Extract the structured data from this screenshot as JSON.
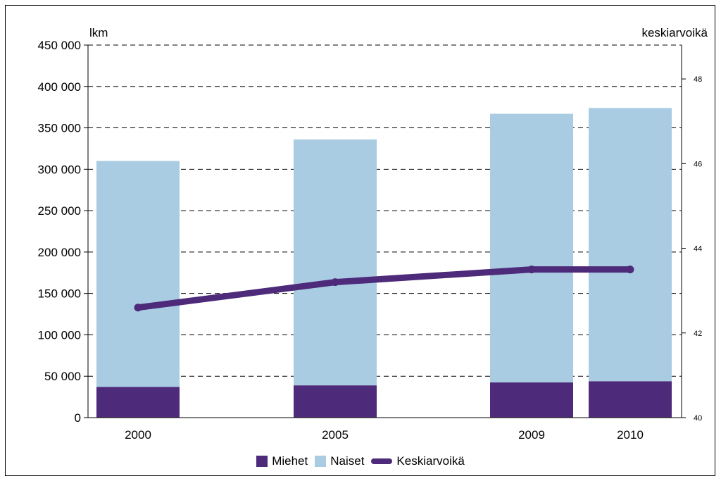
{
  "chart_data": {
    "type": "bar",
    "stacked": true,
    "categories": [
      "2000",
      "2005",
      "2009",
      "2010"
    ],
    "series": [
      {
        "name": "Miehet",
        "type": "bar",
        "axis": "left",
        "color": "#4e2a7a",
        "values": [
          37000,
          39000,
          42500,
          44000
        ]
      },
      {
        "name": "Naiset",
        "type": "bar",
        "axis": "left",
        "color": "#a9cce3",
        "values": [
          273000,
          297000,
          324500,
          330000
        ]
      },
      {
        "name": "Keskiarvoikä",
        "type": "line",
        "axis": "right",
        "color": "#4e2a7a",
        "values": [
          42.6,
          43.2,
          43.5,
          43.5
        ]
      }
    ],
    "left_axis": {
      "label": "lkm",
      "ylim": [
        0,
        450000
      ],
      "tick_values": [
        0,
        50000,
        100000,
        150000,
        200000,
        250000,
        300000,
        350000,
        400000,
        450000
      ],
      "tick_labels": [
        "0",
        "50 000",
        "100 000",
        "150 000",
        "200 000",
        "250 000",
        "300 000",
        "350 000",
        "400 000",
        "450 000"
      ]
    },
    "right_axis": {
      "label": "keskiarvoikä",
      "ylim": [
        40,
        48.8
      ],
      "tick_values": [
        40,
        42,
        44,
        46,
        48
      ],
      "tick_labels": [
        "40",
        "42",
        "44",
        "46",
        "48"
      ]
    },
    "grid": "dashed horizontal",
    "legend_position": "bottom"
  }
}
